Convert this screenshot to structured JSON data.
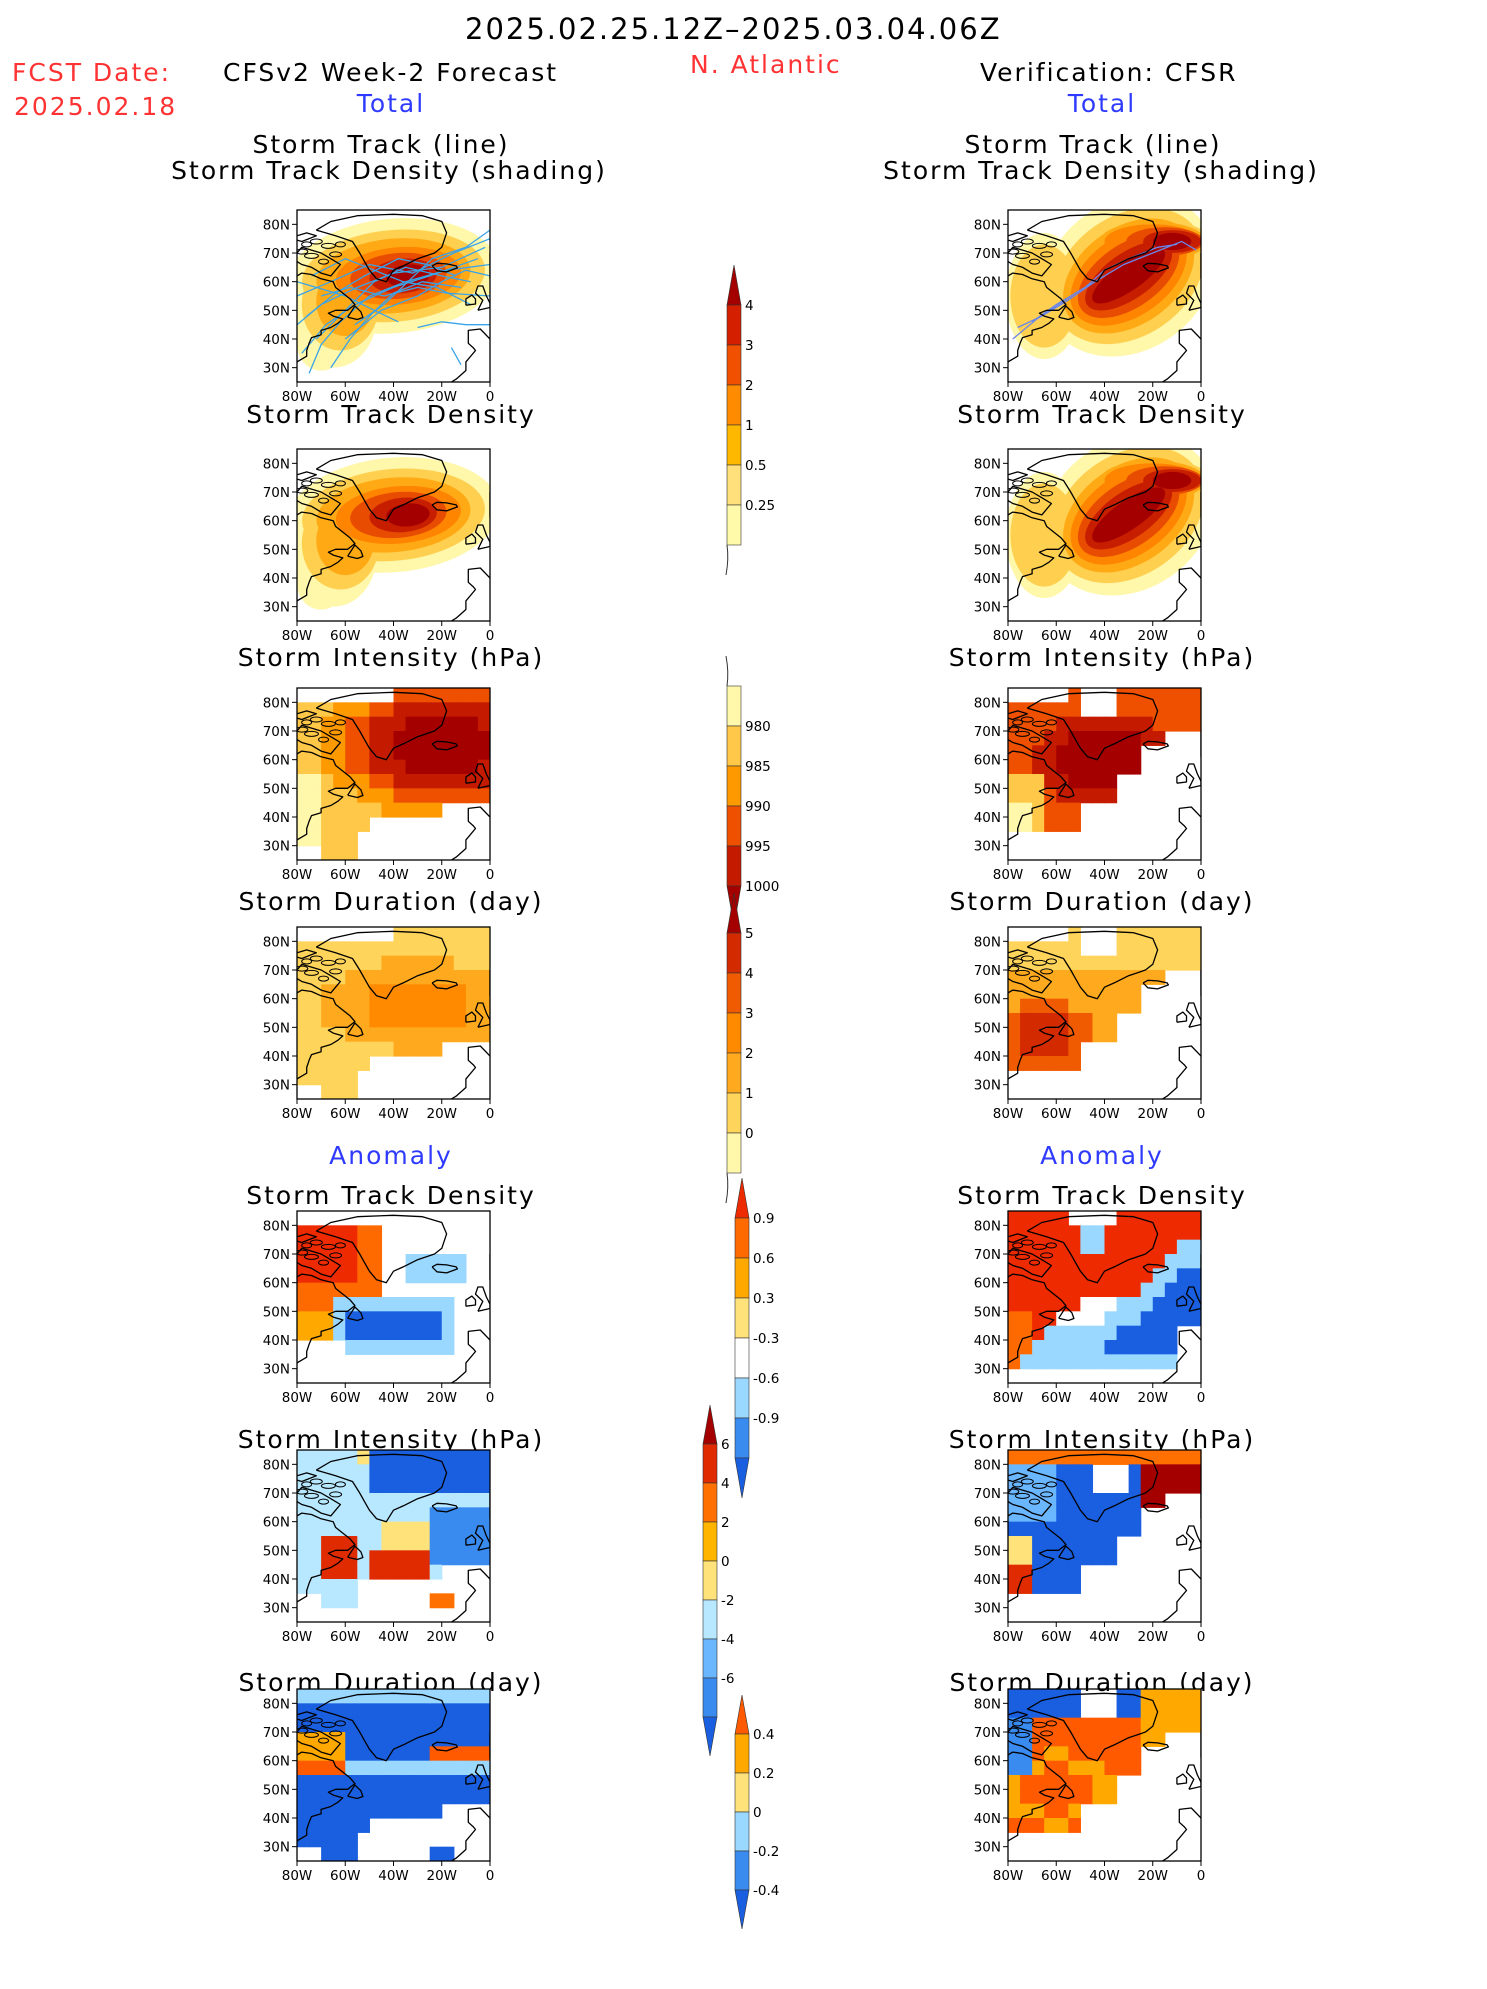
{
  "header": {
    "period": "2025.02.25.12Z–2025.03.04.06Z",
    "fcst_label": "FCST Date:",
    "fcst_date": "2025.02.18",
    "model_title": "CFSv2 Week-2 Forecast",
    "region": "N. Atlantic",
    "verif_title": "Verification: CFSR"
  },
  "sections": {
    "total_label": "Total",
    "anomaly_label": "Anomaly"
  },
  "panel_titles": {
    "track_line_1": "Storm Track (line)",
    "track_line_2": "Storm Track Density (shading)",
    "density": "Storm Track Density",
    "intensity": "Storm Intensity (hPa)",
    "duration": "Storm Duration (day)"
  },
  "axes": {
    "lat_ticks": [
      "80N",
      "70N",
      "60N",
      "50N",
      "40N",
      "30N"
    ],
    "lon_ticks": [
      "80W",
      "60W",
      "40W",
      "20W",
      "0"
    ]
  },
  "colorbars": [
    {
      "id": "density",
      "labels": [
        "0.25",
        "0.5",
        "1",
        "2",
        "3",
        "4"
      ],
      "colors": [
        "#fffaaa",
        "#ffe07a",
        "#ffb800",
        "#ff8c00",
        "#f05000",
        "#d42000",
        "#a50000"
      ],
      "ends": "upper",
      "tail": "lower"
    },
    {
      "id": "intensity",
      "labels": [
        "980",
        "985",
        "990",
        "995",
        "1000"
      ],
      "colors": [
        "#a50000",
        "#c41a00",
        "#ee5000",
        "#ff9900",
        "#ffc848",
        "#fff7aa"
      ],
      "ends": "lower",
      "tail": "upper"
    },
    {
      "id": "duration",
      "labels": [
        "0",
        "1",
        "2",
        "3",
        "4",
        "5"
      ],
      "colors": [
        "#fff7aa",
        "#ffd45a",
        "#ffaa1e",
        "#ff8a00",
        "#f05a00",
        "#d42a00",
        "#a50000"
      ],
      "ends": "upper",
      "tail": "lower"
    },
    {
      "id": "anom_density",
      "labels": [
        "-0.9",
        "-0.6",
        "-0.3",
        "0.3",
        "0.6",
        "0.9"
      ],
      "colors": [
        "#1a5fe0",
        "#3a8bf0",
        "#9ad8ff",
        "#ffffff",
        "#ffe27a",
        "#ffa800",
        "#ff6a00",
        "#ee2a00"
      ],
      "ends": "both"
    },
    {
      "id": "anom_intensity",
      "labels": [
        "-6",
        "-4",
        "-2",
        "0",
        "2",
        "4",
        "6"
      ],
      "colors": [
        "#1a5fe0",
        "#3a8bf0",
        "#6ab6ff",
        "#b8e8ff",
        "#ffe27a",
        "#ffb400",
        "#ff7000",
        "#e02a00",
        "#a50000"
      ],
      "ends": "both"
    },
    {
      "id": "anom_duration",
      "labels": [
        "-0.4",
        "-0.2",
        "0",
        "0.2",
        "0.4"
      ],
      "colors": [
        "#1a5fe0",
        "#3a8bf0",
        "#9ad8ff",
        "#ffe27a",
        "#ffa800",
        "#ff5a00"
      ],
      "ends": "both"
    }
  ],
  "chart_data": [
    {
      "type": "heatmap",
      "panel": "forecast-track",
      "title": "Storm Track (line) / Storm Track Density (shading)",
      "lon_range": [
        -80,
        0
      ],
      "lat_range": [
        25,
        85
      ]
    },
    {
      "type": "heatmap",
      "panel": "forecast-density",
      "title": "Storm Track Density",
      "lon_range": [
        -80,
        0
      ],
      "lat_range": [
        25,
        85
      ]
    },
    {
      "type": "heatmap",
      "panel": "forecast-intensity",
      "title": "Storm Intensity (hPa)",
      "lon_range": [
        -80,
        0
      ],
      "lat_range": [
        25,
        85
      ]
    },
    {
      "type": "heatmap",
      "panel": "forecast-duration",
      "title": "Storm Duration (day)",
      "lon_range": [
        -80,
        0
      ],
      "lat_range": [
        25,
        85
      ]
    },
    {
      "type": "heatmap",
      "panel": "verification-track",
      "title": "Storm Track (line) / Storm Track Density (shading)",
      "lon_range": [
        -80,
        0
      ],
      "lat_range": [
        25,
        85
      ]
    },
    {
      "type": "heatmap",
      "panel": "verification-density",
      "title": "Storm Track Density",
      "lon_range": [
        -80,
        0
      ],
      "lat_range": [
        25,
        85
      ]
    },
    {
      "type": "heatmap",
      "panel": "verification-intensity",
      "title": "Storm Intensity (hPa)",
      "lon_range": [
        -80,
        0
      ],
      "lat_range": [
        25,
        85
      ]
    },
    {
      "type": "heatmap",
      "panel": "verification-duration",
      "title": "Storm Duration (day)",
      "lon_range": [
        -80,
        0
      ],
      "lat_range": [
        25,
        85
      ]
    },
    {
      "type": "heatmap",
      "panel": "forecast-anom-density",
      "title": "Storm Track Density",
      "lon_range": [
        -80,
        0
      ],
      "lat_range": [
        25,
        85
      ]
    },
    {
      "type": "heatmap",
      "panel": "forecast-anom-intensity",
      "title": "Storm Intensity (hPa)",
      "lon_range": [
        -80,
        0
      ],
      "lat_range": [
        25,
        85
      ]
    },
    {
      "type": "heatmap",
      "panel": "forecast-anom-duration",
      "title": "Storm Duration (day)",
      "lon_range": [
        -80,
        0
      ],
      "lat_range": [
        25,
        85
      ]
    },
    {
      "type": "heatmap",
      "panel": "verification-anom-density",
      "title": "Storm Track Density",
      "lon_range": [
        -80,
        0
      ],
      "lat_range": [
        25,
        85
      ]
    },
    {
      "type": "heatmap",
      "panel": "verification-anom-intensity",
      "title": "Storm Intensity (hPa)",
      "lon_range": [
        -80,
        0
      ],
      "lat_range": [
        25,
        85
      ]
    },
    {
      "type": "heatmap",
      "panel": "verification-anom-duration",
      "title": "Storm Duration (day)",
      "lon_range": [
        -80,
        0
      ],
      "lat_range": [
        25,
        85
      ]
    }
  ]
}
